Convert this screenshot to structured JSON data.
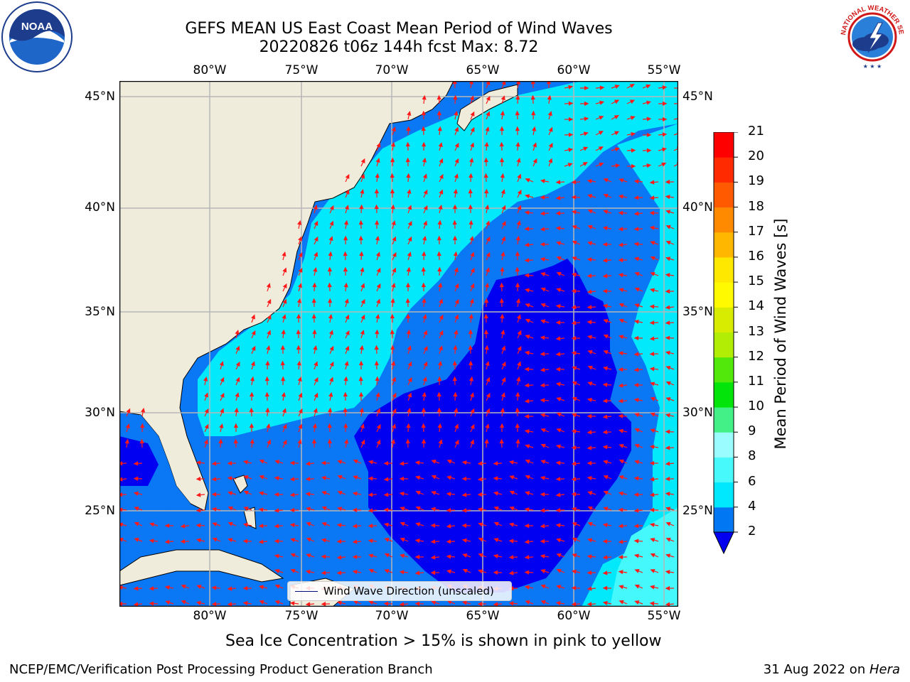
{
  "title": {
    "line1": "GEFS MEAN US East Coast Mean Period of Wind Waves",
    "line2": "20220826 t06z 144h fcst   Max: 8.72"
  },
  "map": {
    "lon_labels": [
      "80°W",
      "75°W",
      "70°W",
      "65°W",
      "60°W",
      "55°W"
    ],
    "lat_labels": [
      "45°N",
      "40°N",
      "35°N",
      "30°N",
      "25°N"
    ],
    "colors": {
      "land": "#efecdc",
      "band_2_4": "#0a77f5",
      "band_4_6": "#02e9fb",
      "band_6_8": "#44f8fc",
      "below_2": "#0200f0",
      "arrow": "#ff1a1a",
      "grid": "#b7b7b7"
    }
  },
  "legend": {
    "label": "Wind Wave Direction (unscaled)"
  },
  "colorbar": {
    "label": "Mean Period of Wind Waves [s]",
    "ticks": [
      "2",
      "4",
      "6",
      "8",
      "9",
      "10",
      "11",
      "12",
      "13",
      "14",
      "15",
      "16",
      "17",
      "18",
      "19",
      "20",
      "21"
    ],
    "colors": [
      "#0277f3",
      "#00e8fd",
      "#48f9fb",
      "#9afcff",
      "#43f088",
      "#03e50a",
      "#52e80c",
      "#b1ed05",
      "#d7ec00",
      "#fffa00",
      "#ffe800",
      "#ffb700",
      "#ff8a00",
      "#ff5a00",
      "#ff2a00",
      "#ff0000"
    ],
    "extend_color": "#0300f0"
  },
  "caption": "Sea Ice Concentration > 15% is shown in pink to yellow",
  "footer": {
    "left": "NCEP/EMC/Verification Post Processing Product Generation Branch",
    "right_date": "31 Aug 2022 on ",
    "right_host": "Hera"
  },
  "logos": {
    "noaa_text": "NOAA",
    "nws_text": "NATIONAL WEATHER SERVICE"
  }
}
